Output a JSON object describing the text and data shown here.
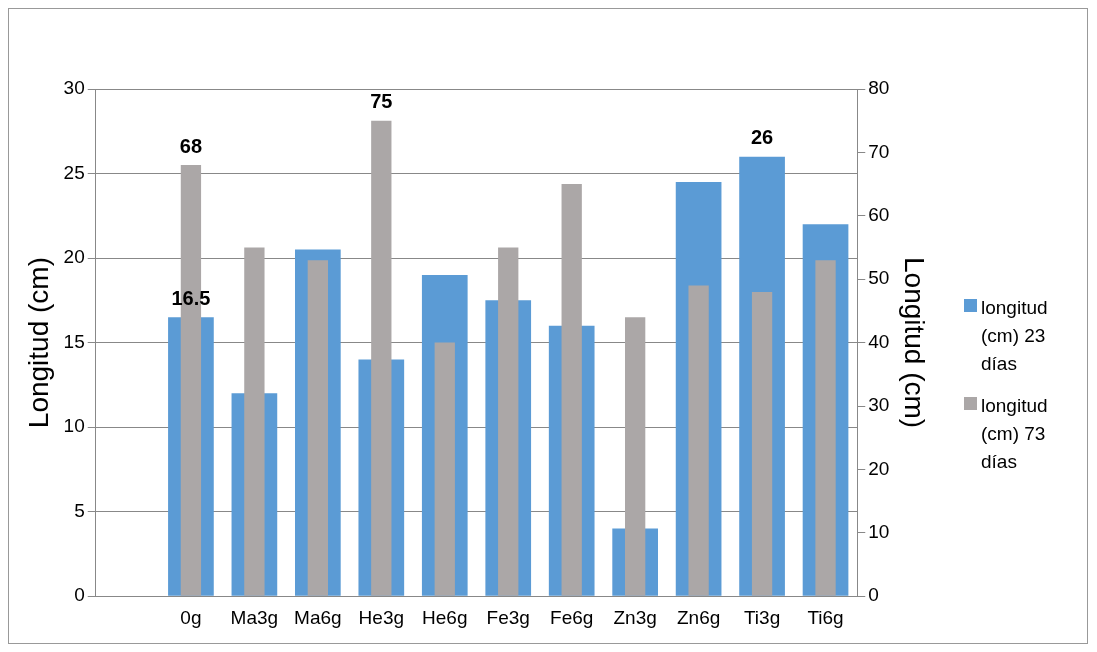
{
  "chart_data": {
    "type": "bar",
    "ylabel": "Longitud (cm)",
    "y2label": "Longitud (cm)",
    "categories": [
      null,
      "0g",
      "Ma3g",
      "Ma6g",
      "He3g",
      "He6g",
      "Fe3g",
      "Fe6g",
      "Zn3g",
      "Zn6g",
      "Ti3g",
      "Ti6g"
    ],
    "series": [
      {
        "name": "longitud (cm) 23 días",
        "color": "#5b9bd5",
        "values": [
          null,
          16.5,
          12,
          20.5,
          14,
          19,
          17.5,
          16,
          4,
          24.5,
          26,
          22
        ],
        "value_labels": [
          null,
          "16.5",
          null,
          null,
          null,
          null,
          null,
          null,
          null,
          null,
          "26",
          null
        ]
      },
      {
        "name": "longitud (cm)  73 días",
        "color": "#aba7a7",
        "axis": "y2",
        "values": [
          null,
          68,
          55,
          53,
          75,
          40,
          55,
          65,
          44,
          49,
          48,
          53
        ],
        "value_labels": [
          null,
          "68",
          null,
          null,
          "75",
          null,
          null,
          null,
          null,
          null,
          null,
          null
        ]
      }
    ],
    "ylim": [
      0,
      30
    ],
    "yticks": [
      0,
      5,
      10,
      15,
      20,
      25,
      30
    ],
    "y2lim": [
      0,
      80
    ],
    "y2ticks": [
      0,
      10,
      20,
      30,
      40,
      50,
      60,
      70,
      80
    ],
    "grid": "y",
    "legend": "right"
  }
}
